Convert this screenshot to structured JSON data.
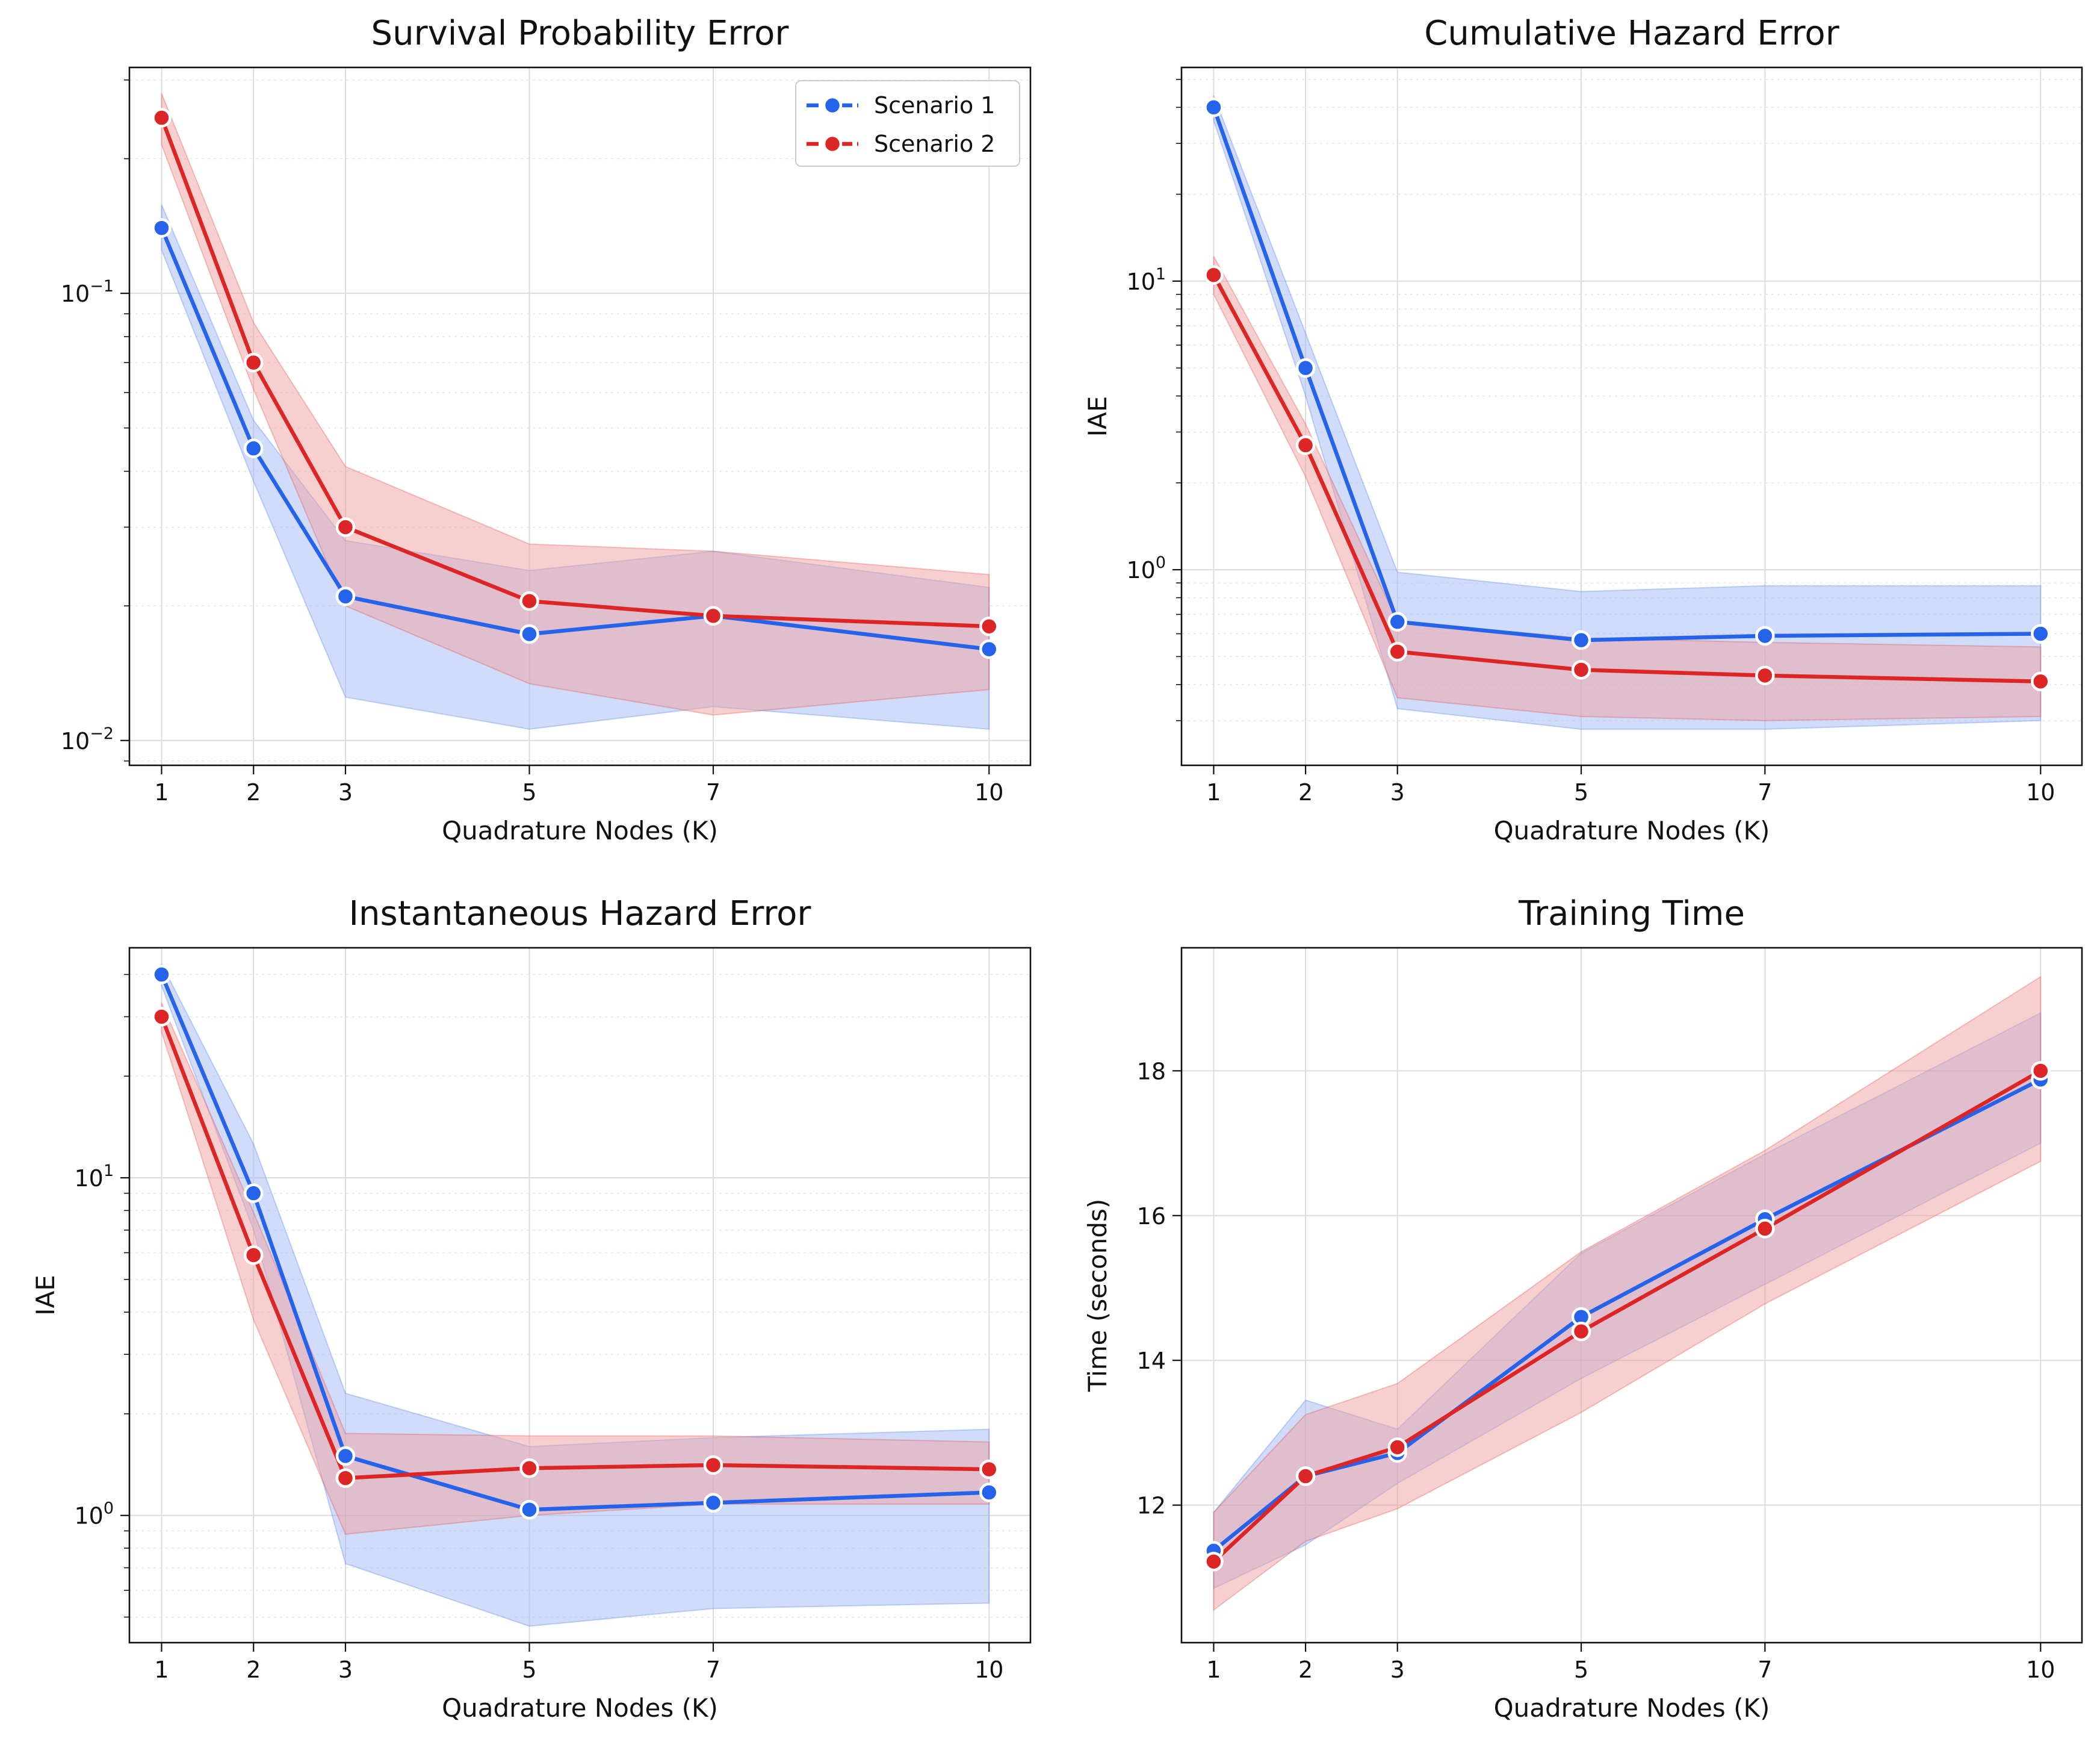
{
  "colors": {
    "scenario_1": "#2563eb",
    "scenario_2": "#dc2626",
    "band_1": "#a3baf5",
    "band_2": "#f0a0a0"
  },
  "legend": {
    "placement": "top-right",
    "panel": 0,
    "entries": [
      {
        "label": "Scenario 1",
        "color": "#2563eb"
      },
      {
        "label": "Scenario 2",
        "color": "#dc2626"
      }
    ]
  },
  "chart_data": [
    {
      "type": "line",
      "title": "Survival Probability Error",
      "xlabel": "Quadrature Nodes (K)",
      "ylabel": "",
      "y_scale": "log",
      "ylim": [
        0.0088,
        0.32
      ],
      "grid": true,
      "x": [
        1,
        2,
        3,
        5,
        7,
        10
      ],
      "xticks": [
        "1",
        "2",
        "3",
        "5",
        "7",
        "10"
      ],
      "yticks": [
        {
          "value": 0.01,
          "base": "10",
          "exp": "−2"
        },
        {
          "value": 0.1,
          "base": "10",
          "exp": "−1"
        }
      ],
      "series": [
        {
          "name": "Scenario 1",
          "values": [
            0.14,
            0.045,
            0.021,
            0.0173,
            0.019,
            0.016
          ],
          "lower": [
            0.125,
            0.038,
            0.0125,
            0.0106,
            0.0119,
            0.0106
          ],
          "upper": [
            0.158,
            0.052,
            0.028,
            0.024,
            0.0265,
            0.022
          ]
        },
        {
          "name": "Scenario 2",
          "values": [
            0.247,
            0.07,
            0.03,
            0.0205,
            0.019,
            0.018
          ],
          "lower": [
            0.215,
            0.061,
            0.02,
            0.0134,
            0.0114,
            0.013
          ],
          "upper": [
            0.28,
            0.086,
            0.041,
            0.0275,
            0.0265,
            0.0235
          ]
        }
      ]
    },
    {
      "type": "line",
      "title": "Cumulative Hazard Error",
      "xlabel": "Quadrature Nodes (K)",
      "ylabel": "IAE",
      "y_scale": "log",
      "ylim": [
        0.21,
        55
      ],
      "grid": true,
      "x": [
        1,
        2,
        3,
        5,
        7,
        10
      ],
      "xticks": [
        "1",
        "2",
        "3",
        "5",
        "7",
        "10"
      ],
      "yticks": [
        {
          "value": 1,
          "base": "10",
          "exp": "0"
        },
        {
          "value": 10,
          "base": "10",
          "exp": "1"
        }
      ],
      "series": [
        {
          "name": "Scenario 1",
          "values": [
            40,
            5.0,
            0.66,
            0.57,
            0.59,
            0.6
          ],
          "lower": [
            36,
            4.0,
            0.33,
            0.28,
            0.28,
            0.3
          ],
          "upper": [
            44,
            6.6,
            0.98,
            0.84,
            0.88,
            0.88
          ]
        },
        {
          "name": "Scenario 2",
          "values": [
            10.5,
            2.7,
            0.52,
            0.45,
            0.43,
            0.41
          ],
          "lower": [
            9.0,
            2.1,
            0.36,
            0.31,
            0.3,
            0.31
          ],
          "upper": [
            12.2,
            3.2,
            0.66,
            0.58,
            0.56,
            0.54
          ]
        }
      ]
    },
    {
      "type": "line",
      "title": "Instantaneous Hazard Error",
      "xlabel": "Quadrature Nodes (K)",
      "ylabel": "IAE",
      "y_scale": "log",
      "ylim": [
        0.42,
        48
      ],
      "grid": true,
      "x": [
        1,
        2,
        3,
        5,
        7,
        10
      ],
      "xticks": [
        "1",
        "2",
        "3",
        "5",
        "7",
        "10"
      ],
      "yticks": [
        {
          "value": 1,
          "base": "10",
          "exp": "0"
        },
        {
          "value": 10,
          "base": "10",
          "exp": "1"
        }
      ],
      "series": [
        {
          "name": "Scenario 1",
          "values": [
            40,
            9.0,
            1.5,
            1.04,
            1.09,
            1.17
          ],
          "lower": [
            37,
            7.0,
            0.72,
            0.47,
            0.53,
            0.55
          ],
          "upper": [
            43,
            12.6,
            2.3,
            1.6,
            1.7,
            1.8
          ]
        },
        {
          "name": "Scenario 2",
          "values": [
            30,
            5.9,
            1.29,
            1.38,
            1.41,
            1.37
          ],
          "lower": [
            27,
            3.8,
            0.88,
            1.0,
            1.08,
            1.08
          ],
          "upper": [
            33,
            7.9,
            1.75,
            1.72,
            1.72,
            1.65
          ]
        }
      ]
    },
    {
      "type": "line",
      "title": "Training Time",
      "xlabel": "Quadrature Nodes (K)",
      "ylabel": "Time (seconds)",
      "y_scale": "linear",
      "ylim": [
        10.1,
        19.7
      ],
      "grid": true,
      "x": [
        1,
        2,
        3,
        5,
        7,
        10
      ],
      "xticks": [
        "1",
        "2",
        "3",
        "5",
        "7",
        "10"
      ],
      "yticks": [
        {
          "value": 12,
          "label": "12"
        },
        {
          "value": 14,
          "label": "14"
        },
        {
          "value": 16,
          "label": "16"
        },
        {
          "value": 18,
          "label": "18"
        }
      ],
      "series": [
        {
          "name": "Scenario 1",
          "values": [
            11.37,
            12.4,
            12.72,
            14.6,
            15.95,
            17.88
          ],
          "lower": [
            10.85,
            11.45,
            12.3,
            13.75,
            15.05,
            17.0
          ],
          "upper": [
            11.9,
            13.45,
            13.05,
            15.48,
            16.85,
            18.8
          ]
        },
        {
          "name": "Scenario 2",
          "values": [
            11.22,
            12.4,
            12.8,
            14.4,
            15.82,
            18.0
          ],
          "lower": [
            10.55,
            11.5,
            11.95,
            13.28,
            14.78,
            16.75
          ],
          "upper": [
            11.9,
            13.25,
            13.68,
            15.5,
            16.9,
            19.3
          ]
        }
      ]
    }
  ]
}
